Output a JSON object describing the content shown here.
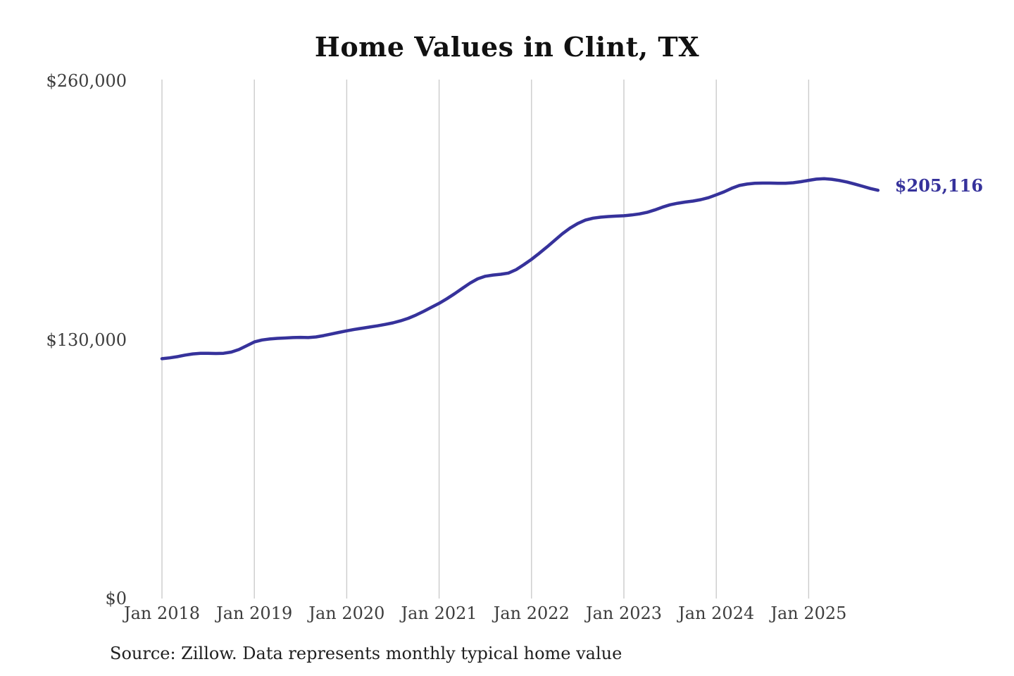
{
  "chart": {
    "background": "#ffffff"
  },
  "chart_data": {
    "type": "line",
    "title": "Home Values in Clint, TX",
    "source_note": "Source: Zillow. Data represents monthly typical home value",
    "last_value_label": "$205,116",
    "last_value": 205116,
    "line_color": "#36329b",
    "gridline_color": "#cbcbcb",
    "axis_text_color": "#3d3d3d",
    "title_color": "#111111",
    "source_color": "#1f1f1f",
    "grid": "vertical-only",
    "legend": "none",
    "ylim": [
      0,
      260000
    ],
    "y_ticks": [
      {
        "value": 0,
        "label": "$0"
      },
      {
        "value": 130000,
        "label": "$130,000"
      },
      {
        "value": 260000,
        "label": "$260,000"
      }
    ],
    "x_tick_labels": [
      "Jan 2018",
      "Jan 2019",
      "Jan 2020",
      "Jan 2021",
      "Jan 2022",
      "Jan 2023",
      "Jan 2024",
      "Jan 2025"
    ],
    "x": [
      "2018-01",
      "2018-02",
      "2018-03",
      "2018-04",
      "2018-05",
      "2018-06",
      "2018-07",
      "2018-08",
      "2018-09",
      "2018-10",
      "2018-11",
      "2018-12",
      "2019-01",
      "2019-02",
      "2019-03",
      "2019-04",
      "2019-05",
      "2019-06",
      "2019-07",
      "2019-08",
      "2019-09",
      "2019-10",
      "2019-11",
      "2019-12",
      "2020-01",
      "2020-02",
      "2020-03",
      "2020-04",
      "2020-05",
      "2020-06",
      "2020-07",
      "2020-08",
      "2020-09",
      "2020-10",
      "2020-11",
      "2020-12",
      "2021-01",
      "2021-02",
      "2021-03",
      "2021-04",
      "2021-05",
      "2021-06",
      "2021-07",
      "2021-08",
      "2021-09",
      "2021-10",
      "2021-11",
      "2021-12",
      "2022-01",
      "2022-02",
      "2022-03",
      "2022-04",
      "2022-05",
      "2022-06",
      "2022-07",
      "2022-08",
      "2022-09",
      "2022-10",
      "2022-11",
      "2022-12",
      "2023-01",
      "2023-02",
      "2023-03",
      "2023-04",
      "2023-05",
      "2023-06",
      "2023-07",
      "2023-08",
      "2023-09",
      "2023-10",
      "2023-11",
      "2023-12",
      "2024-01",
      "2024-02",
      "2024-03",
      "2024-04",
      "2024-05",
      "2024-06",
      "2024-07",
      "2024-08",
      "2024-09",
      "2024-10",
      "2024-11",
      "2024-12",
      "2025-01",
      "2025-02",
      "2025-03",
      "2025-04",
      "2025-05",
      "2025-06",
      "2025-07",
      "2025-08",
      "2025-09",
      "2025-10"
    ],
    "values": [
      120500,
      120900,
      121500,
      122300,
      122900,
      123200,
      123200,
      123100,
      123200,
      123800,
      125100,
      127000,
      128900,
      129900,
      130400,
      130700,
      130900,
      131100,
      131200,
      131100,
      131400,
      132100,
      132900,
      133700,
      134500,
      135200,
      135800,
      136400,
      137000,
      137700,
      138500,
      139500,
      140800,
      142400,
      144300,
      146300,
      148300,
      150600,
      153100,
      155800,
      158400,
      160600,
      161900,
      162500,
      162900,
      163500,
      165200,
      167700,
      170400,
      173400,
      176600,
      179900,
      183200,
      186100,
      188400,
      190100,
      191100,
      191600,
      191900,
      192100,
      192300,
      192700,
      193200,
      194000,
      195200,
      196600,
      197800,
      198600,
      199200,
      199700,
      200400,
      201400,
      202800,
      204300,
      206100,
      207500,
      208200,
      208600,
      208700,
      208700,
      208600,
      208600,
      208900,
      209400,
      210100,
      210700,
      210900,
      210600,
      210000,
      209200,
      208200,
      207100,
      206000,
      205116
    ]
  }
}
